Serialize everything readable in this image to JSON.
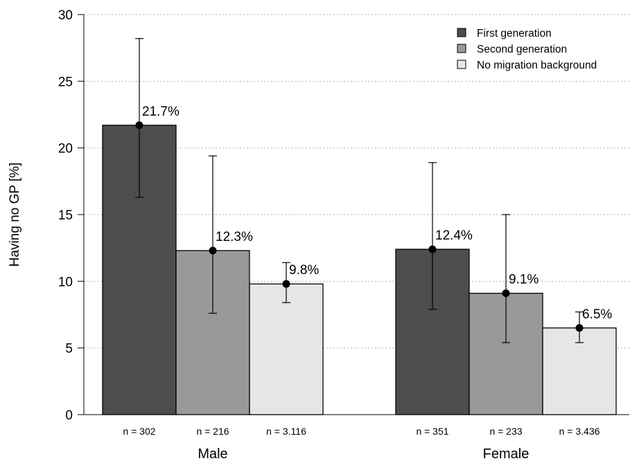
{
  "chart_data": {
    "type": "bar",
    "ylabel": "Having no GP [%]",
    "ylim": [
      0,
      30
    ],
    "yticks": [
      "0",
      "5",
      "10",
      "15",
      "20",
      "25",
      "30"
    ],
    "ytick_values": [
      0,
      5,
      10,
      15,
      20,
      25,
      30
    ],
    "grid": "horizontal dotted",
    "legend_position": "top-right",
    "groups": [
      {
        "name": "Male",
        "n_labels": [
          "n = 302",
          "n = 216",
          "n = 3.116"
        ]
      },
      {
        "name": "Female",
        "n_labels": [
          "n = 351",
          "n = 233",
          "n = 3.436"
        ]
      }
    ],
    "series": [
      {
        "name": "First generation",
        "color": "#4d4d4d",
        "values": [
          21.7,
          12.4
        ],
        "labels": [
          "21.7%",
          "12.4%"
        ],
        "ci_low": [
          16.3,
          7.9
        ],
        "ci_high": [
          28.2,
          18.9
        ]
      },
      {
        "name": "Second generation",
        "color": "#999999",
        "values": [
          12.3,
          9.1
        ],
        "labels": [
          "12.3%",
          "9.1%"
        ],
        "ci_low": [
          7.6,
          5.4
        ],
        "ci_high": [
          19.4,
          15.0
        ]
      },
      {
        "name": "No migration background",
        "color": "#e6e6e6",
        "values": [
          9.8,
          6.5
        ],
        "labels": [
          "9.8%",
          "6.5%"
        ],
        "ci_low": [
          8.4,
          5.4
        ],
        "ci_high": [
          11.4,
          7.7
        ]
      }
    ]
  }
}
